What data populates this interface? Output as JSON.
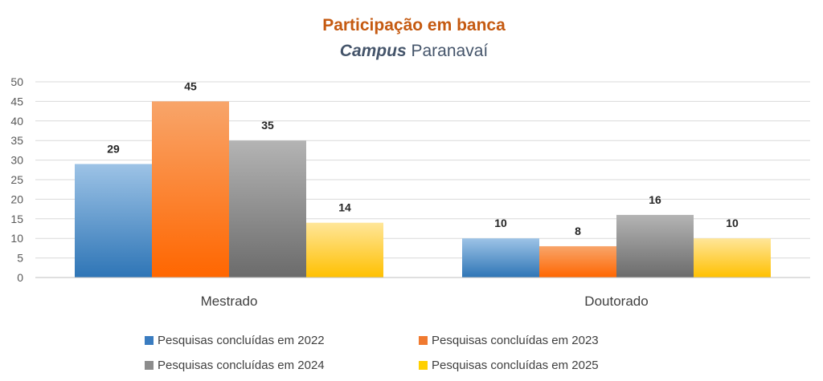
{
  "chart_data": {
    "type": "bar",
    "title": "Participação  em banca",
    "subtitle_italic": "Campus",
    "subtitle_rest": " Paranavaí",
    "categories": [
      "Mestrado",
      "Doutorado"
    ],
    "series": [
      {
        "name": "Pesquisas concluídas em 2022",
        "values": [
          29,
          10
        ]
      },
      {
        "name": "Pesquisas concluídas em 2023",
        "values": [
          45,
          8
        ]
      },
      {
        "name": "Pesquisas concluídas em 2024",
        "values": [
          35,
          16
        ]
      },
      {
        "name": "Pesquisas concluídas em 2025",
        "values": [
          14,
          10
        ]
      }
    ],
    "ylim": [
      0,
      50
    ],
    "yticks": [
      0,
      5,
      10,
      15,
      20,
      25,
      30,
      35,
      40,
      45,
      50
    ],
    "grid": true,
    "legend_position": "bottom",
    "colors": {
      "title": "#c55a11",
      "subtitle": "#44546a",
      "series": [
        [
          "#9dc3e6",
          "#2e75b6"
        ],
        [
          "#f8a56a",
          "#ff6600"
        ],
        [
          "#b4b4b4",
          "#6b6b6b"
        ],
        [
          "#ffe699",
          "#ffc000"
        ]
      ],
      "legend": [
        "#3a7cc0",
        "#f07a30",
        "#8c8c8c",
        "#ffd000"
      ],
      "grid": "#d9d9d9",
      "axis": "#bfbfbf"
    }
  }
}
